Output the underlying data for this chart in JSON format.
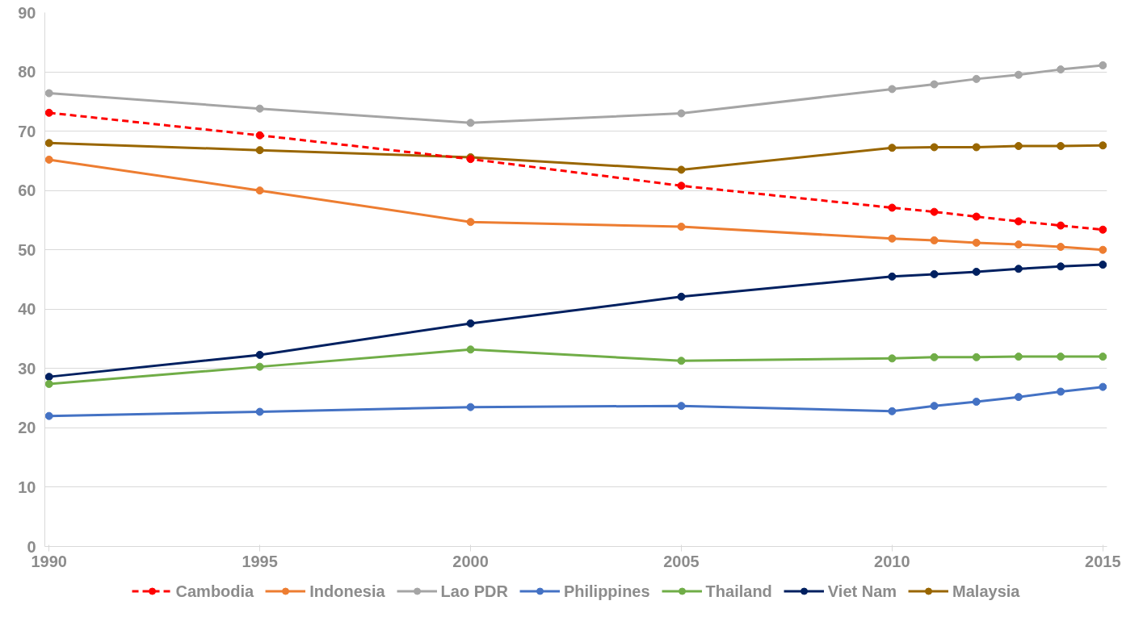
{
  "chart_data": {
    "type": "line",
    "x": [
      1990,
      1995,
      2000,
      2005,
      2010,
      2011,
      2012,
      2013,
      2014,
      2015
    ],
    "series": [
      {
        "name": "Cambodia",
        "color": "#ff0000",
        "line_style": "dashed",
        "values": [
          73.1,
          69.3,
          65.3,
          60.8,
          57.1,
          56.4,
          55.6,
          54.8,
          54.1,
          53.4
        ]
      },
      {
        "name": "Indonesia",
        "color": "#ed7d31",
        "values": [
          65.2,
          60.0,
          54.7,
          53.9,
          51.9,
          51.6,
          51.2,
          50.9,
          50.5,
          50.0
        ]
      },
      {
        "name": "Lao PDR",
        "color": "#a5a5a5",
        "values": [
          76.4,
          73.8,
          71.4,
          73.0,
          77.1,
          77.9,
          78.8,
          79.5,
          80.4,
          81.1
        ]
      },
      {
        "name": "Philippines",
        "color": "#4472c4",
        "values": [
          22.0,
          22.7,
          23.5,
          23.7,
          22.8,
          23.7,
          24.4,
          25.2,
          26.1,
          26.9
        ]
      },
      {
        "name": "Thailand",
        "color": "#70ad47",
        "values": [
          27.4,
          30.3,
          33.2,
          31.3,
          31.7,
          31.9,
          31.9,
          32.0,
          32.0,
          32.0
        ]
      },
      {
        "name": "Viet Nam",
        "color": "#002060",
        "values": [
          28.6,
          32.3,
          37.6,
          42.1,
          45.5,
          45.9,
          46.3,
          46.8,
          47.2,
          47.5
        ]
      },
      {
        "name": "Malaysia",
        "color": "#996600",
        "values": [
          68.0,
          66.8,
          65.6,
          63.5,
          67.2,
          67.3,
          67.3,
          67.5,
          67.5,
          67.6
        ]
      }
    ],
    "xlim": [
      1989.9,
      2015.1
    ],
    "xticks": [
      1990,
      1995,
      2000,
      2005,
      2010,
      2015
    ],
    "ylim": [
      0,
      90
    ],
    "yticks": [
      0,
      10,
      20,
      30,
      40,
      50,
      60,
      70,
      80,
      90
    ],
    "grid": "y",
    "legend": "bottom",
    "marker": "circle",
    "line_style": "solid"
  }
}
